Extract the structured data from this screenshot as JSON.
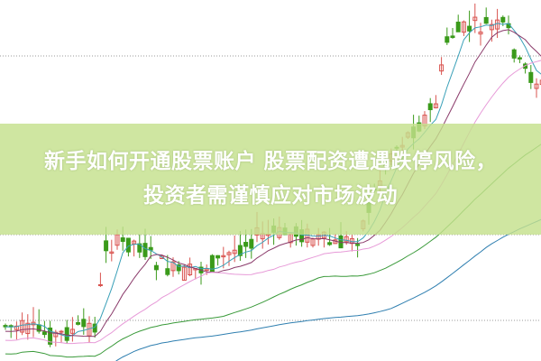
{
  "headline": {
    "line1": "新手如何开通股票账户 股票配资遭遇跌停风险，",
    "line2": "投资者需谨慎应对市场波动"
  },
  "colors": {
    "up_candle": "#d9534f",
    "down_candle": "#3a9a1a",
    "ma_short": "#3aa0b8",
    "ma_mid": "#8a3a6a",
    "ma_long": "#e79ad8",
    "ma_longer": "#3a9a3a",
    "ma_longest": "#2f7fb0",
    "banner": "#c4e08c",
    "headline_text": "#ffffff"
  }
}
